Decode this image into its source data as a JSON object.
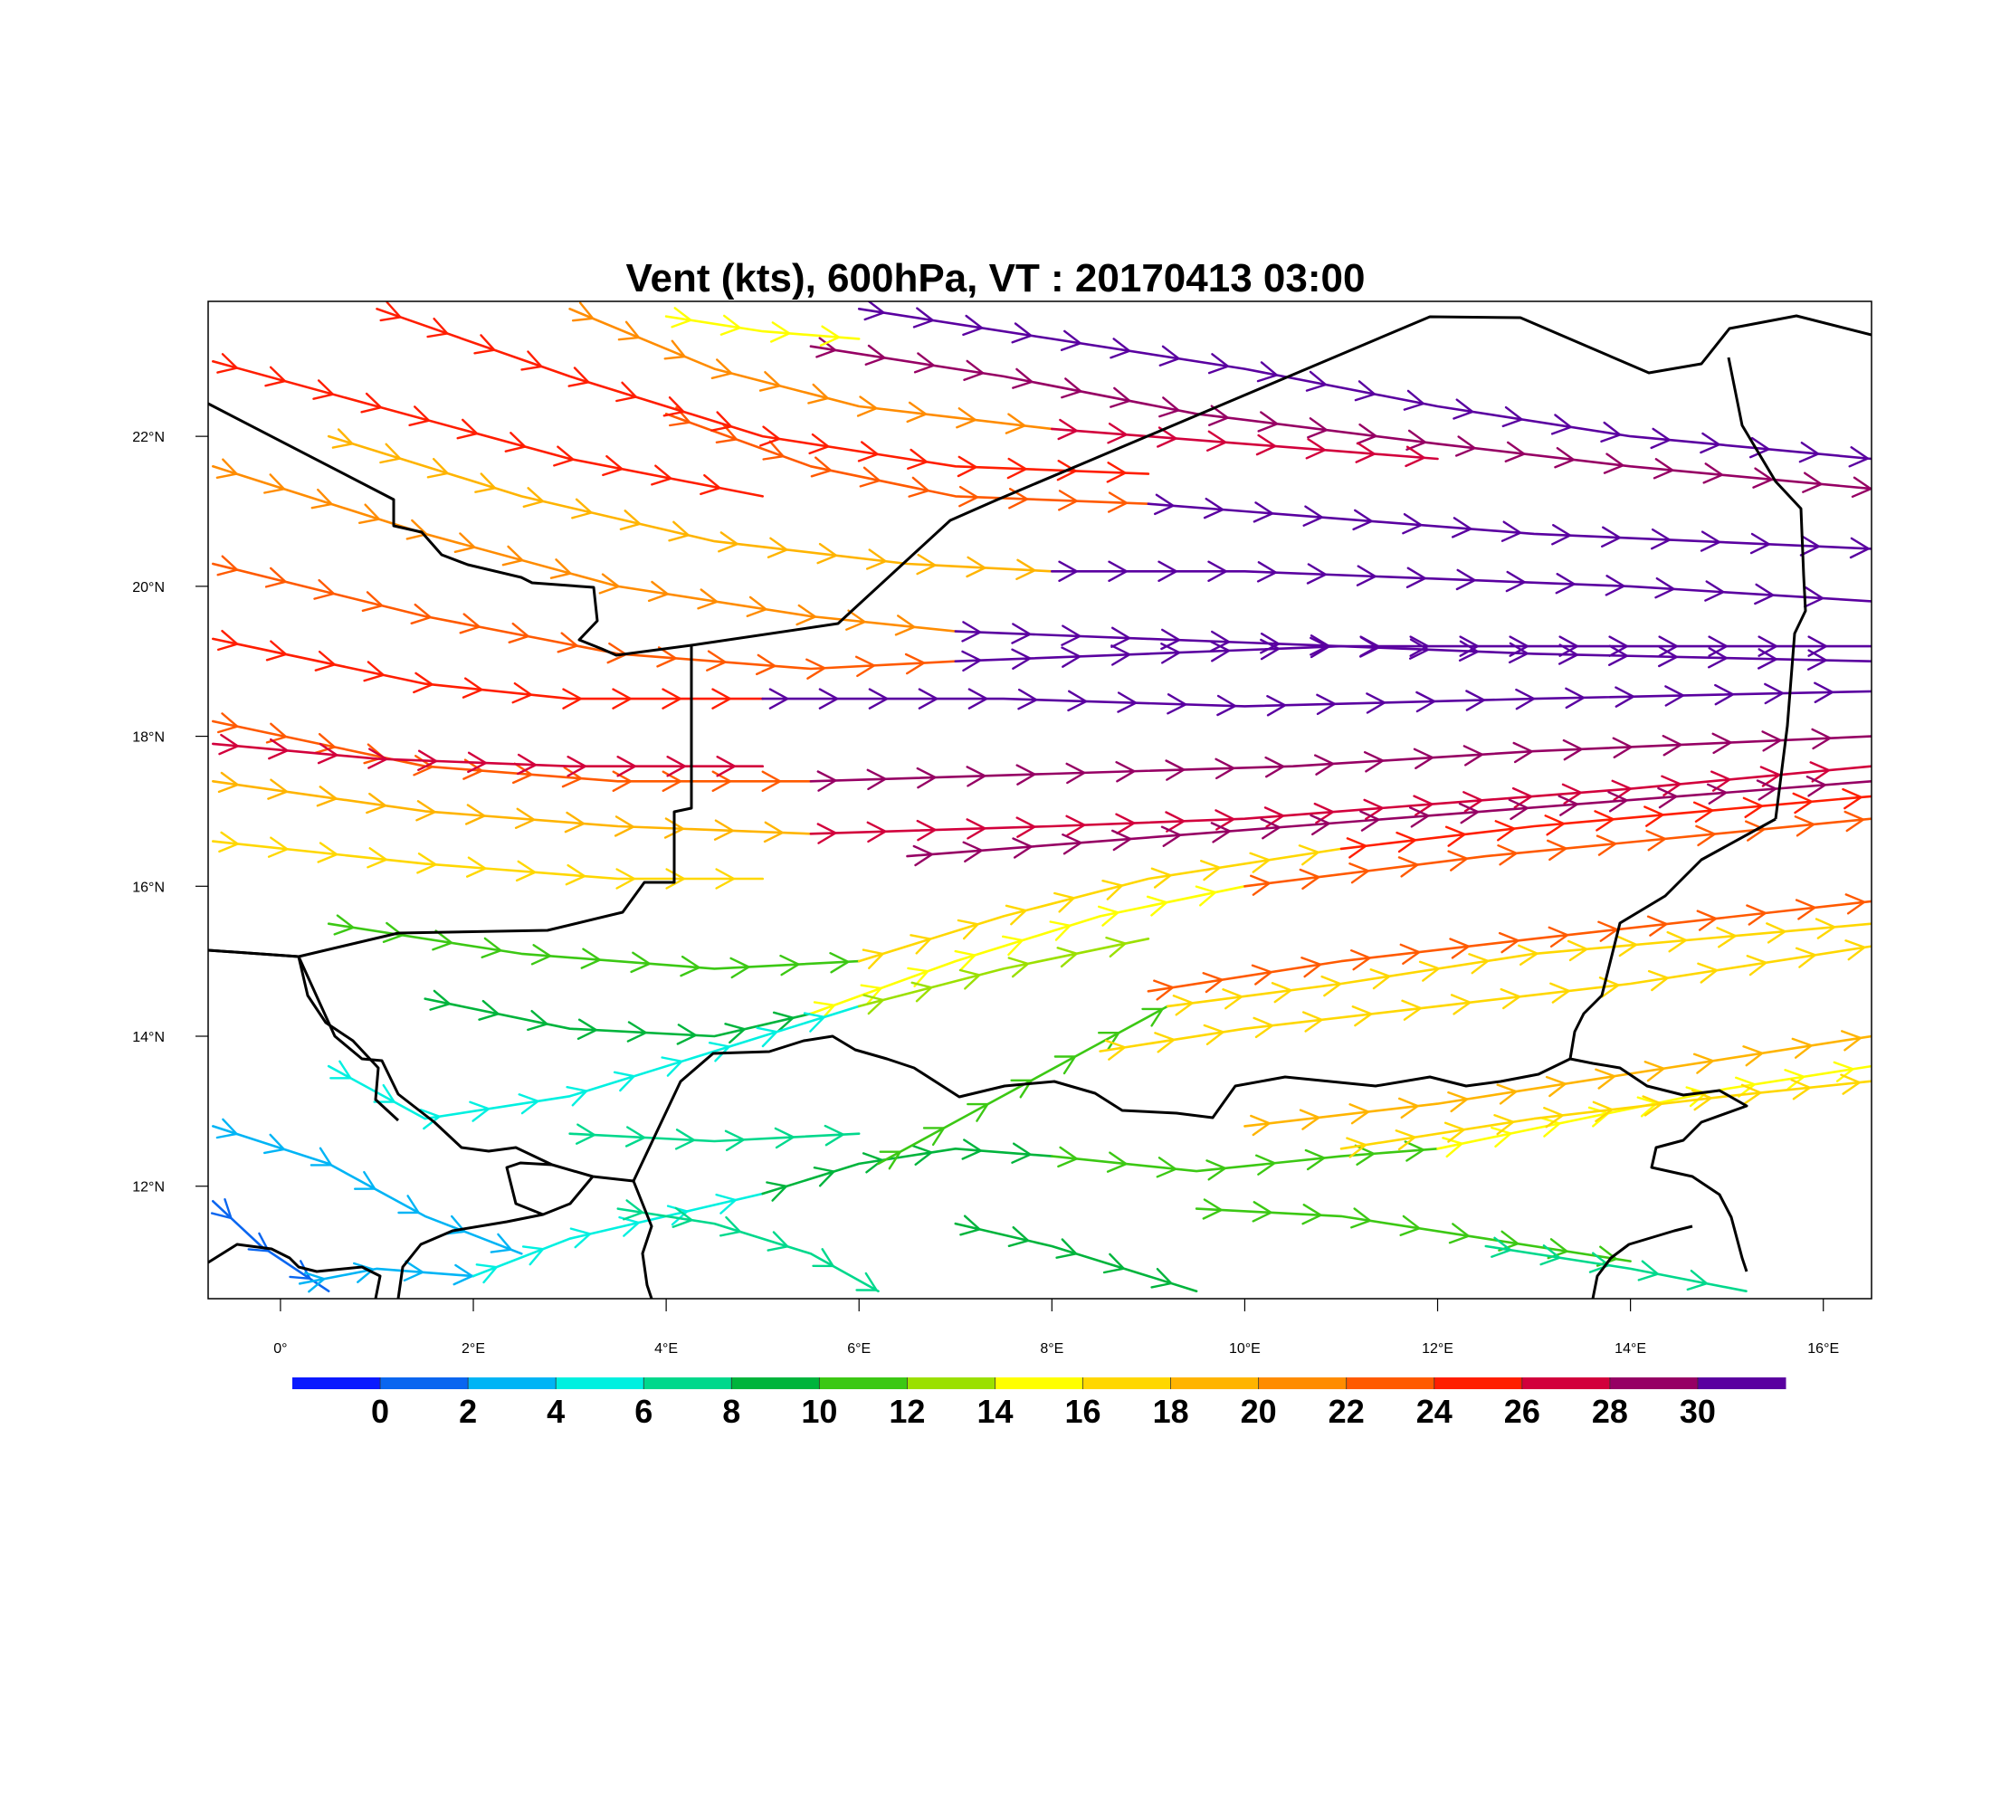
{
  "title": "Vent (kts), 600hPa, VT : 20170413  03:00",
  "map": {
    "lon_range": [
      -0.75,
      16.5
    ],
    "lat_range": [
      10.5,
      23.8
    ],
    "lon_ticks": [
      {
        "value": 0,
        "label": "0°"
      },
      {
        "value": 2,
        "label": "2°E"
      },
      {
        "value": 4,
        "label": "4°E"
      },
      {
        "value": 6,
        "label": "6°E"
      },
      {
        "value": 8,
        "label": "8°E"
      },
      {
        "value": 10,
        "label": "10°E"
      },
      {
        "value": 12,
        "label": "12°E"
      },
      {
        "value": 14,
        "label": "14°E"
      },
      {
        "value": 16,
        "label": "16°E"
      }
    ],
    "lat_ticks": [
      {
        "value": 12,
        "label": "12°N"
      },
      {
        "value": 14,
        "label": "14°N"
      },
      {
        "value": 16,
        "label": "16°N"
      },
      {
        "value": 18,
        "label": "18°N"
      },
      {
        "value": 20,
        "label": "20°N"
      },
      {
        "value": 22,
        "label": "22°N"
      }
    ]
  },
  "colorbar": {
    "colors": [
      "#0a1aff",
      "#0a66f0",
      "#00b4f5",
      "#00f0e0",
      "#00d88c",
      "#00b43c",
      "#3cc814",
      "#9be000",
      "#ffff00",
      "#ffd700",
      "#ffb400",
      "#ff8c00",
      "#ff5a00",
      "#ff1e00",
      "#d2003c",
      "#960064",
      "#5a00a0"
    ],
    "labels": [
      "0",
      "2",
      "4",
      "6",
      "8",
      "10",
      "12",
      "14",
      "16",
      "18",
      "20",
      "22",
      "24",
      "26",
      "28",
      "30"
    ]
  },
  "streamlines": [
    {
      "speed": 31,
      "points": [
        [
          6.0,
          23.7
        ],
        [
          8,
          23.3
        ],
        [
          10,
          22.9
        ],
        [
          12,
          22.4
        ],
        [
          14,
          22.0
        ],
        [
          16.5,
          21.7
        ]
      ]
    },
    {
      "speed": 29,
      "points": [
        [
          5.5,
          23.2
        ],
        [
          7.5,
          22.8
        ],
        [
          9.5,
          22.3
        ],
        [
          12,
          21.9
        ],
        [
          14,
          21.6
        ],
        [
          16.5,
          21.3
        ]
      ]
    },
    {
      "speed": 22,
      "points": [
        [
          4.0,
          22.3
        ],
        [
          5.5,
          21.6
        ],
        [
          7,
          21.2
        ],
        [
          9,
          21.1
        ]
      ]
    },
    {
      "speed": 31,
      "points": [
        [
          9,
          21.1
        ],
        [
          11,
          20.9
        ],
        [
          13,
          20.7
        ],
        [
          16.5,
          20.5
        ]
      ]
    },
    {
      "speed": 19,
      "points": [
        [
          0.5,
          22.0
        ],
        [
          2.5,
          21.2
        ],
        [
          4.5,
          20.6
        ],
        [
          6.5,
          20.3
        ],
        [
          8,
          20.2
        ]
      ]
    },
    {
      "speed": 31,
      "points": [
        [
          8,
          20.2
        ],
        [
          10,
          20.2
        ],
        [
          12,
          20.1
        ],
        [
          14,
          20.0
        ],
        [
          16.5,
          19.8
        ]
      ]
    },
    {
      "speed": 21,
      "points": [
        [
          -0.7,
          21.6
        ],
        [
          1.5,
          20.7
        ],
        [
          3.5,
          20.0
        ],
        [
          5.5,
          19.6
        ],
        [
          7,
          19.4
        ]
      ]
    },
    {
      "speed": 31,
      "points": [
        [
          7,
          19.4
        ],
        [
          9,
          19.3
        ],
        [
          11,
          19.2
        ],
        [
          13,
          19.1
        ],
        [
          16.5,
          19.0
        ]
      ]
    },
    {
      "speed": 23,
      "points": [
        [
          -0.7,
          20.3
        ],
        [
          1.5,
          19.6
        ],
        [
          3.5,
          19.1
        ],
        [
          5.5,
          18.9
        ],
        [
          7,
          19.0
        ]
      ]
    },
    {
      "speed": 31,
      "points": [
        [
          7,
          19.0
        ],
        [
          9,
          19.1
        ],
        [
          11,
          19.2
        ],
        [
          13,
          19.2
        ],
        [
          16.5,
          19.2
        ]
      ]
    },
    {
      "speed": 25,
      "points": [
        [
          -0.7,
          19.3
        ],
        [
          1.5,
          18.7
        ],
        [
          3,
          18.5
        ],
        [
          5,
          18.5
        ]
      ]
    },
    {
      "speed": 31,
      "points": [
        [
          5,
          18.5
        ],
        [
          7.5,
          18.5
        ],
        [
          10,
          18.4
        ],
        [
          13,
          18.5
        ],
        [
          16.5,
          18.6
        ]
      ]
    },
    {
      "speed": 23,
      "points": [
        [
          -0.7,
          18.2
        ],
        [
          1.5,
          17.6
        ],
        [
          3.5,
          17.4
        ],
        [
          5.5,
          17.4
        ]
      ]
    },
    {
      "speed": 29,
      "points": [
        [
          5.5,
          17.4
        ],
        [
          8,
          17.5
        ],
        [
          10.5,
          17.6
        ],
        [
          13,
          17.8
        ],
        [
          16.5,
          18.0
        ]
      ]
    },
    {
      "speed": 18,
      "points": [
        [
          -0.7,
          17.4
        ],
        [
          1.5,
          17.0
        ],
        [
          3.5,
          16.8
        ],
        [
          5.5,
          16.7
        ]
      ]
    },
    {
      "speed": 26,
      "points": [
        [
          5.5,
          16.7
        ],
        [
          8,
          16.8
        ],
        [
          10,
          16.9
        ],
        [
          12,
          17.1
        ],
        [
          14,
          17.3
        ],
        [
          16.5,
          17.6
        ]
      ]
    },
    {
      "speed": 16,
      "points": [
        [
          -0.7,
          16.6
        ],
        [
          1.5,
          16.3
        ],
        [
          3.5,
          16.1
        ],
        [
          5,
          16.1
        ]
      ]
    },
    {
      "speed": 28,
      "points": [
        [
          6.5,
          16.4
        ],
        [
          8.5,
          16.6
        ],
        [
          10.5,
          16.8
        ],
        [
          12.5,
          17.0
        ],
        [
          14.5,
          17.2
        ],
        [
          16.5,
          17.4
        ]
      ]
    },
    {
      "speed": 11,
      "points": [
        [
          0.5,
          15.5
        ],
        [
          2.5,
          15.1
        ],
        [
          4.5,
          14.9
        ],
        [
          6,
          15.0
        ]
      ]
    },
    {
      "speed": 17,
      "points": [
        [
          6,
          15.0
        ],
        [
          7.5,
          15.6
        ],
        [
          9,
          16.1
        ],
        [
          11,
          16.5
        ]
      ]
    },
    {
      "speed": 25,
      "points": [
        [
          11,
          16.5
        ],
        [
          13,
          16.8
        ],
        [
          16.5,
          17.2
        ]
      ]
    },
    {
      "speed": 9,
      "points": [
        [
          1.5,
          14.5
        ],
        [
          3,
          14.1
        ],
        [
          4.5,
          14.0
        ],
        [
          5.5,
          14.3
        ]
      ]
    },
    {
      "speed": 15,
      "points": [
        [
          5.5,
          14.3
        ],
        [
          7,
          15.0
        ],
        [
          8.5,
          15.6
        ],
        [
          10,
          16.0
        ]
      ]
    },
    {
      "speed": 22,
      "points": [
        [
          10,
          16.0
        ],
        [
          12.5,
          16.4
        ],
        [
          16.5,
          16.9
        ]
      ]
    },
    {
      "speed": 5,
      "points": [
        [
          0.5,
          13.6
        ],
        [
          1.5,
          12.9
        ],
        [
          3,
          13.2
        ],
        [
          4.5,
          13.8
        ],
        [
          6,
          14.4
        ]
      ]
    },
    {
      "speed": 13,
      "points": [
        [
          6,
          14.4
        ],
        [
          7.5,
          14.9
        ],
        [
          9,
          15.3
        ]
      ]
    },
    {
      "speed": 3,
      "points": [
        [
          -0.7,
          12.8
        ],
        [
          0.5,
          12.3
        ],
        [
          1.5,
          11.6
        ],
        [
          2.5,
          11.1
        ]
      ]
    },
    {
      "speed": 1,
      "points": [
        [
          -0.7,
          11.8
        ],
        [
          -0.2,
          11.2
        ],
        [
          0.5,
          10.6
        ]
      ]
    },
    {
      "speed": 2,
      "points": [
        [
          0.2,
          10.7
        ],
        [
          1.0,
          10.9
        ],
        [
          2.0,
          10.8
        ]
      ]
    },
    {
      "speed": 5,
      "points": [
        [
          2.0,
          10.8
        ],
        [
          3.0,
          11.3
        ],
        [
          4.0,
          11.6
        ],
        [
          5.0,
          11.9
        ]
      ]
    },
    {
      "speed": 8,
      "points": [
        [
          5.0,
          11.9
        ],
        [
          6.0,
          12.3
        ],
        [
          7.0,
          12.5
        ],
        [
          8.0,
          12.4
        ]
      ]
    },
    {
      "speed": 10,
      "points": [
        [
          8.0,
          12.4
        ],
        [
          9.5,
          12.2
        ],
        [
          11,
          12.4
        ],
        [
          12,
          12.5
        ]
      ]
    },
    {
      "speed": 14,
      "points": [
        [
          12,
          12.5
        ],
        [
          13.5,
          12.9
        ],
        [
          15,
          13.3
        ],
        [
          16.5,
          13.6
        ]
      ]
    },
    {
      "speed": 11,
      "points": [
        [
          6.2,
          12.3
        ],
        [
          7.2,
          13.0
        ],
        [
          8.2,
          13.7
        ],
        [
          9.2,
          14.4
        ]
      ]
    },
    {
      "speed": 17,
      "points": [
        [
          9.2,
          14.4
        ],
        [
          11,
          14.7
        ],
        [
          13,
          15.1
        ],
        [
          16.5,
          15.5
        ]
      ]
    },
    {
      "speed": 23,
      "points": [
        [
          9.0,
          14.6
        ],
        [
          11,
          15.0
        ],
        [
          13,
          15.3
        ],
        [
          16.5,
          15.8
        ]
      ]
    },
    {
      "speed": 16,
      "points": [
        [
          8.5,
          13.8
        ],
        [
          10,
          14.1
        ],
        [
          12,
          14.4
        ],
        [
          14,
          14.7
        ],
        [
          16.5,
          15.2
        ]
      ]
    },
    {
      "speed": 18,
      "points": [
        [
          10,
          12.8
        ],
        [
          12,
          13.1
        ],
        [
          14,
          13.5
        ],
        [
          16.5,
          14.0
        ]
      ]
    },
    {
      "speed": 16,
      "points": [
        [
          11,
          12.5
        ],
        [
          13,
          12.9
        ],
        [
          15,
          13.2
        ],
        [
          16.5,
          13.4
        ]
      ]
    },
    {
      "speed": 7,
      "points": [
        [
          3.5,
          11.7
        ],
        [
          4.5,
          11.5
        ],
        [
          5.5,
          11.1
        ],
        [
          6.2,
          10.6
        ]
      ]
    },
    {
      "speed": 9,
      "points": [
        [
          7.0,
          11.5
        ],
        [
          8,
          11.2
        ],
        [
          9,
          10.8
        ],
        [
          9.5,
          10.6
        ]
      ]
    },
    {
      "speed": 10,
      "points": [
        [
          9.5,
          11.7
        ],
        [
          11,
          11.6
        ],
        [
          12.5,
          11.3
        ],
        [
          14,
          11.0
        ]
      ]
    },
    {
      "speed": 7,
      "points": [
        [
          12.5,
          11.2
        ],
        [
          14,
          10.9
        ],
        [
          15.2,
          10.6
        ]
      ]
    },
    {
      "speed": 6,
      "points": [
        [
          3.0,
          12.7
        ],
        [
          4.5,
          12.6
        ],
        [
          6.0,
          12.7
        ]
      ]
    },
    {
      "speed": 24,
      "points": [
        [
          -0.7,
          23.0
        ],
        [
          1,
          22.4
        ],
        [
          3,
          21.7
        ],
        [
          5,
          21.2
        ]
      ]
    },
    {
      "speed": 25,
      "points": [
        [
          1.0,
          23.7
        ],
        [
          3,
          22.8
        ],
        [
          5,
          22.0
        ],
        [
          7,
          21.6
        ],
        [
          9,
          21.5
        ]
      ]
    },
    {
      "speed": 20,
      "points": [
        [
          3.0,
          23.7
        ],
        [
          4.5,
          22.9
        ],
        [
          6,
          22.4
        ],
        [
          8,
          22.1
        ]
      ]
    },
    {
      "speed": 27,
      "points": [
        [
          8,
          22.1
        ],
        [
          10,
          21.9
        ],
        [
          12,
          21.7
        ]
      ]
    },
    {
      "speed": 14,
      "points": [
        [
          4.0,
          23.6
        ],
        [
          5,
          23.4
        ],
        [
          6,
          23.3
        ]
      ]
    },
    {
      "speed": 27,
      "points": [
        [
          -0.7,
          17.9
        ],
        [
          1,
          17.7
        ],
        [
          3,
          17.6
        ],
        [
          5,
          17.6
        ]
      ]
    }
  ]
}
